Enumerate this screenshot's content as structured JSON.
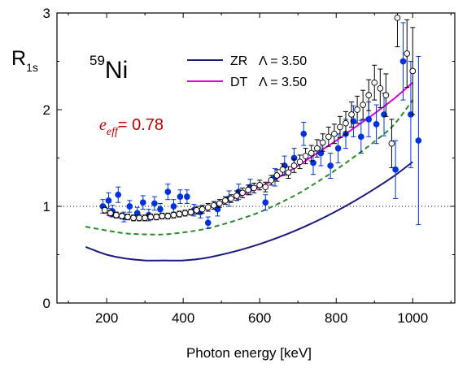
{
  "chart_data": {
    "type": "scatter",
    "xlabel": "Photon energy [keV]",
    "ylabel": "R",
    "ylabel_sub": "1s",
    "xlim": [
      70,
      1110
    ],
    "ylim": [
      0,
      3
    ],
    "xticks": [
      200,
      400,
      600,
      800,
      1000
    ],
    "yticks": [
      0,
      1,
      2,
      3
    ],
    "reference_line": {
      "y": 1,
      "style": "dotted"
    },
    "isotope": {
      "mass": "59",
      "element": "Ni"
    },
    "annotation": {
      "symbol": "e",
      "sub": "eff",
      "text": "= 0.78",
      "color": "#c00000"
    },
    "legend": [
      {
        "label": "ZR",
        "param": "Λ = 3.50",
        "color": "#1a1a80"
      },
      {
        "label": "DT",
        "param": "Λ = 3.50",
        "color": "#e000e0"
      }
    ],
    "curves": [
      {
        "name": "ZR",
        "color": "#1a1a80",
        "dash": "none",
        "x": [
          145,
          200,
          250,
          300,
          350,
          400,
          450,
          500,
          550,
          600,
          650,
          700,
          750,
          800,
          850,
          900,
          950,
          1000
        ],
        "y": [
          0.58,
          0.5,
          0.46,
          0.44,
          0.44,
          0.44,
          0.46,
          0.5,
          0.55,
          0.61,
          0.68,
          0.76,
          0.85,
          0.95,
          1.06,
          1.18,
          1.31,
          1.46
        ]
      },
      {
        "name": "DT",
        "color": "#e000e0",
        "dash": "none",
        "x": [
          200,
          250,
          300,
          350,
          400,
          450,
          500,
          550,
          600,
          650,
          700,
          750,
          800,
          850,
          900,
          950,
          1000
        ],
        "y": [
          0.91,
          0.88,
          0.88,
          0.89,
          0.92,
          0.97,
          1.03,
          1.11,
          1.2,
          1.3,
          1.42,
          1.55,
          1.68,
          1.82,
          1.96,
          2.11,
          2.28
        ]
      },
      {
        "name": "",
        "color": "#2a8a2a",
        "dash": "6,4",
        "x": [
          145,
          200,
          250,
          300,
          350,
          400,
          450,
          500,
          550,
          600,
          650,
          700,
          750,
          800,
          850,
          900,
          950,
          1000
        ],
        "y": [
          0.79,
          0.75,
          0.72,
          0.71,
          0.71,
          0.73,
          0.76,
          0.81,
          0.87,
          0.94,
          1.03,
          1.13,
          1.25,
          1.38,
          1.52,
          1.67,
          1.84,
          2.1
        ]
      }
    ],
    "series": [
      {
        "name": "",
        "marker": "filled-circle",
        "color": "#0033dd",
        "points": [
          {
            "x": 190,
            "y": 1.0,
            "err": 0.07
          },
          {
            "x": 205,
            "y": 1.06,
            "err": 0.08
          },
          {
            "x": 215,
            "y": 0.95,
            "err": 0.06
          },
          {
            "x": 230,
            "y": 1.12,
            "err": 0.08
          },
          {
            "x": 245,
            "y": 0.89,
            "err": 0.05
          },
          {
            "x": 260,
            "y": 1.0,
            "err": 0.06
          },
          {
            "x": 280,
            "y": 0.93,
            "err": 0.06
          },
          {
            "x": 295,
            "y": 1.04,
            "err": 0.07
          },
          {
            "x": 310,
            "y": 0.91,
            "err": 0.06
          },
          {
            "x": 325,
            "y": 1.03,
            "err": 0.07
          },
          {
            "x": 340,
            "y": 0.97,
            "err": 0.06
          },
          {
            "x": 360,
            "y": 1.15,
            "err": 0.08
          },
          {
            "x": 375,
            "y": 1.0,
            "err": 0.07
          },
          {
            "x": 392,
            "y": 1.1,
            "err": 0.07
          },
          {
            "x": 410,
            "y": 1.1,
            "err": 0.07
          },
          {
            "x": 428,
            "y": 0.96,
            "err": 0.06
          },
          {
            "x": 445,
            "y": 0.94,
            "err": 0.06
          },
          {
            "x": 465,
            "y": 0.83,
            "err": 0.06
          },
          {
            "x": 490,
            "y": 0.97,
            "err": 0.07
          },
          {
            "x": 520,
            "y": 1.08,
            "err": 0.08
          },
          {
            "x": 545,
            "y": 1.15,
            "err": 0.08
          },
          {
            "x": 575,
            "y": 1.2,
            "err": 0.08
          },
          {
            "x": 615,
            "y": 1.04,
            "err": 0.08
          },
          {
            "x": 640,
            "y": 1.3,
            "err": 0.09
          },
          {
            "x": 665,
            "y": 1.42,
            "err": 0.1
          },
          {
            "x": 690,
            "y": 1.5,
            "err": 0.1
          },
          {
            "x": 715,
            "y": 1.75,
            "err": 0.12
          },
          {
            "x": 740,
            "y": 1.45,
            "err": 0.12
          },
          {
            "x": 760,
            "y": 1.55,
            "err": 0.13
          },
          {
            "x": 785,
            "y": 1.42,
            "err": 0.13
          },
          {
            "x": 805,
            "y": 1.6,
            "err": 0.15
          },
          {
            "x": 825,
            "y": 1.75,
            "err": 0.15
          },
          {
            "x": 845,
            "y": 1.88,
            "err": 0.16
          },
          {
            "x": 865,
            "y": 1.72,
            "err": 0.17
          },
          {
            "x": 885,
            "y": 1.9,
            "err": 0.18
          },
          {
            "x": 905,
            "y": 1.85,
            "err": 0.2
          },
          {
            "x": 925,
            "y": 1.95,
            "err": 0.22
          },
          {
            "x": 955,
            "y": 1.38,
            "err": 0.3
          },
          {
            "x": 975,
            "y": 2.5,
            "err": 0.4
          },
          {
            "x": 995,
            "y": 1.95,
            "err": 0.55
          },
          {
            "x": 1015,
            "y": 1.68,
            "err": 0.87
          }
        ]
      },
      {
        "name": "",
        "marker": "open-circle",
        "color": "#000000",
        "points": [
          {
            "x": 195,
            "y": 0.96,
            "err": 0.03
          },
          {
            "x": 210,
            "y": 0.93,
            "err": 0.03
          },
          {
            "x": 225,
            "y": 0.91,
            "err": 0.03
          },
          {
            "x": 240,
            "y": 0.9,
            "err": 0.03
          },
          {
            "x": 255,
            "y": 0.89,
            "err": 0.03
          },
          {
            "x": 270,
            "y": 0.88,
            "err": 0.03
          },
          {
            "x": 285,
            "y": 0.88,
            "err": 0.03
          },
          {
            "x": 300,
            "y": 0.88,
            "err": 0.03
          },
          {
            "x": 315,
            "y": 0.89,
            "err": 0.03
          },
          {
            "x": 330,
            "y": 0.89,
            "err": 0.03
          },
          {
            "x": 345,
            "y": 0.9,
            "err": 0.03
          },
          {
            "x": 360,
            "y": 0.9,
            "err": 0.03
          },
          {
            "x": 375,
            "y": 0.91,
            "err": 0.03
          },
          {
            "x": 390,
            "y": 0.92,
            "err": 0.03
          },
          {
            "x": 405,
            "y": 0.93,
            "err": 0.03
          },
          {
            "x": 420,
            "y": 0.94,
            "err": 0.03
          },
          {
            "x": 435,
            "y": 0.96,
            "err": 0.04
          },
          {
            "x": 450,
            "y": 0.97,
            "err": 0.04
          },
          {
            "x": 465,
            "y": 0.99,
            "err": 0.04
          },
          {
            "x": 480,
            "y": 1.01,
            "err": 0.04
          },
          {
            "x": 495,
            "y": 1.03,
            "err": 0.04
          },
          {
            "x": 510,
            "y": 1.06,
            "err": 0.04
          },
          {
            "x": 525,
            "y": 1.08,
            "err": 0.04
          },
          {
            "x": 540,
            "y": 1.11,
            "err": 0.05
          },
          {
            "x": 555,
            "y": 1.14,
            "err": 0.05
          },
          {
            "x": 570,
            "y": 1.17,
            "err": 0.05
          },
          {
            "x": 585,
            "y": 1.19,
            "err": 0.05
          },
          {
            "x": 600,
            "y": 1.22,
            "err": 0.05
          },
          {
            "x": 615,
            "y": 1.2,
            "err": 0.05
          },
          {
            "x": 630,
            "y": 1.27,
            "err": 0.05
          },
          {
            "x": 645,
            "y": 1.32,
            "err": 0.06
          },
          {
            "x": 660,
            "y": 1.38,
            "err": 0.06
          },
          {
            "x": 675,
            "y": 1.35,
            "err": 0.06
          },
          {
            "x": 690,
            "y": 1.42,
            "err": 0.07
          },
          {
            "x": 705,
            "y": 1.46,
            "err": 0.07
          },
          {
            "x": 720,
            "y": 1.52,
            "err": 0.08
          },
          {
            "x": 735,
            "y": 1.55,
            "err": 0.08
          },
          {
            "x": 750,
            "y": 1.6,
            "err": 0.09
          },
          {
            "x": 765,
            "y": 1.66,
            "err": 0.09
          },
          {
            "x": 780,
            "y": 1.72,
            "err": 0.1
          },
          {
            "x": 795,
            "y": 1.75,
            "err": 0.1
          },
          {
            "x": 810,
            "y": 1.82,
            "err": 0.11
          },
          {
            "x": 825,
            "y": 1.86,
            "err": 0.12
          },
          {
            "x": 840,
            "y": 1.95,
            "err": 0.13
          },
          {
            "x": 855,
            "y": 2.0,
            "err": 0.14
          },
          {
            "x": 870,
            "y": 2.05,
            "err": 0.15
          },
          {
            "x": 885,
            "y": 2.15,
            "err": 0.16
          },
          {
            "x": 900,
            "y": 2.28,
            "err": 0.18
          },
          {
            "x": 915,
            "y": 2.22,
            "err": 0.2
          },
          {
            "x": 930,
            "y": 2.15,
            "err": 0.22
          },
          {
            "x": 945,
            "y": 1.65,
            "err": 0.25
          },
          {
            "x": 960,
            "y": 2.95,
            "err": 0.3
          },
          {
            "x": 985,
            "y": 2.58,
            "err": 0.35
          },
          {
            "x": 1000,
            "y": 2.4,
            "err": 0.45
          }
        ]
      }
    ]
  }
}
